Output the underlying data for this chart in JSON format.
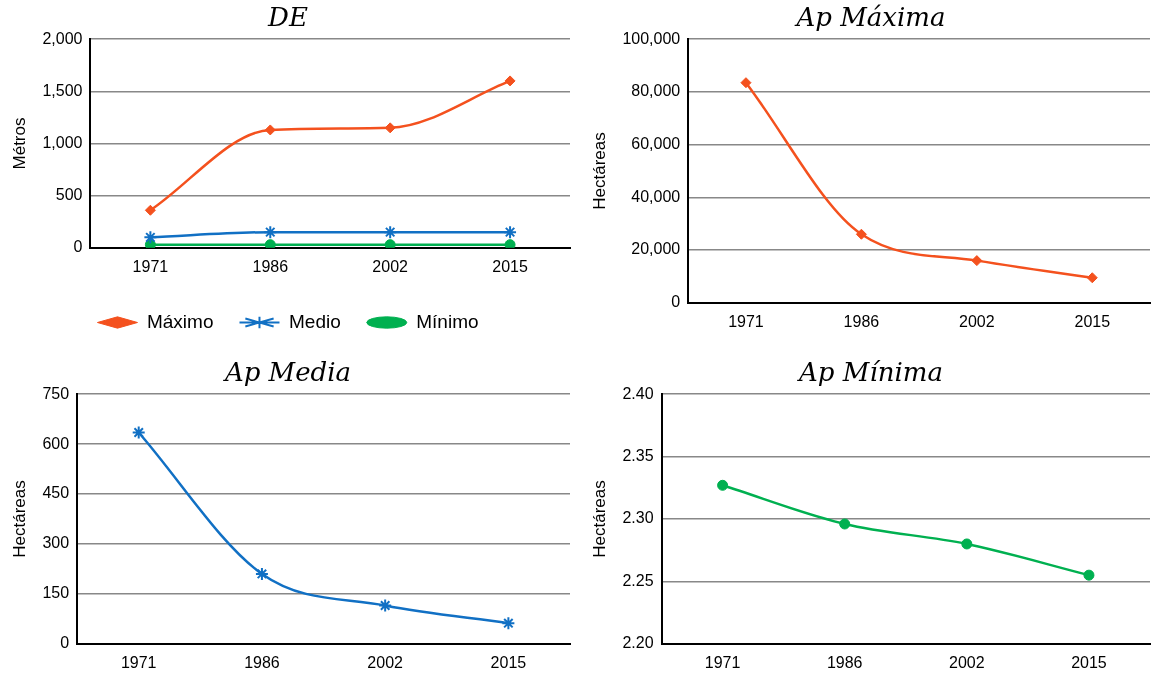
{
  "chart_data": [
    {
      "type": "line",
      "title": "DE",
      "ylabel": "Métros",
      "categories": [
        "1971",
        "1986",
        "2002",
        "2015"
      ],
      "series": [
        {
          "name": "Máximo",
          "color": "#f4511e",
          "marker": "diamond",
          "values": [
            360,
            1130,
            1150,
            1600
          ]
        },
        {
          "name": "Medio",
          "color": "#1170c4",
          "marker": "cross",
          "values": [
            100,
            150,
            150,
            150
          ]
        },
        {
          "name": "Mínimo",
          "color": "#00b050",
          "marker": "circle",
          "values": [
            30,
            30,
            30,
            30
          ]
        }
      ],
      "ylim": [
        0,
        2000
      ],
      "yticks": [
        0,
        500,
        {
          "value": 1000,
          "label": "1,000"
        },
        {
          "value": 1500,
          "label": "1,500"
        },
        {
          "value": 2000,
          "label": "2,000"
        }
      ],
      "grid": "y",
      "legend": "bottom"
    },
    {
      "type": "line",
      "title": "Ap Máxima",
      "ylabel": "Hectáreas",
      "categories": [
        "1971",
        "1986",
        "2002",
        "2015"
      ],
      "values": [
        83500,
        26000,
        16000,
        9500
      ],
      "color": "#f4511e",
      "marker": "diamond",
      "ylim": [
        0,
        100000
      ],
      "yticks": [
        0,
        {
          "value": 20000,
          "label": "20,000"
        },
        {
          "value": 40000,
          "label": "40,000"
        },
        {
          "value": 60000,
          "label": "60,000"
        },
        {
          "value": 80000,
          "label": "80,000"
        },
        {
          "value": 100000,
          "label": "100,000"
        }
      ],
      "grid": "y"
    },
    {
      "type": "line",
      "title": "Ap Media",
      "ylabel": "Hectáreas",
      "categories": [
        "1971",
        "1986",
        "2002",
        "2015"
      ],
      "values": [
        635,
        210,
        115,
        62
      ],
      "color": "#1170c4",
      "marker": "cross",
      "ylim": [
        0,
        750
      ],
      "yticks": [
        0,
        150,
        300,
        450,
        600,
        750
      ],
      "grid": "y"
    },
    {
      "type": "line",
      "title": "Ap Mínima",
      "ylabel": "Hectáreas",
      "categories": [
        "1971",
        "1986",
        "2002",
        "2015"
      ],
      "values": [
        2.327,
        2.296,
        2.28,
        2.255
      ],
      "color": "#00b050",
      "marker": "circle",
      "ylim": [
        2.2,
        2.4
      ],
      "yticks": [
        {
          "value": 2.2,
          "label": "2.20"
        },
        {
          "value": 2.25,
          "label": "2.25"
        },
        {
          "value": 2.3,
          "label": "2.30"
        },
        {
          "value": 2.35,
          "label": "2.35"
        },
        {
          "value": 2.4,
          "label": "2.40"
        }
      ],
      "grid": "y"
    }
  ]
}
